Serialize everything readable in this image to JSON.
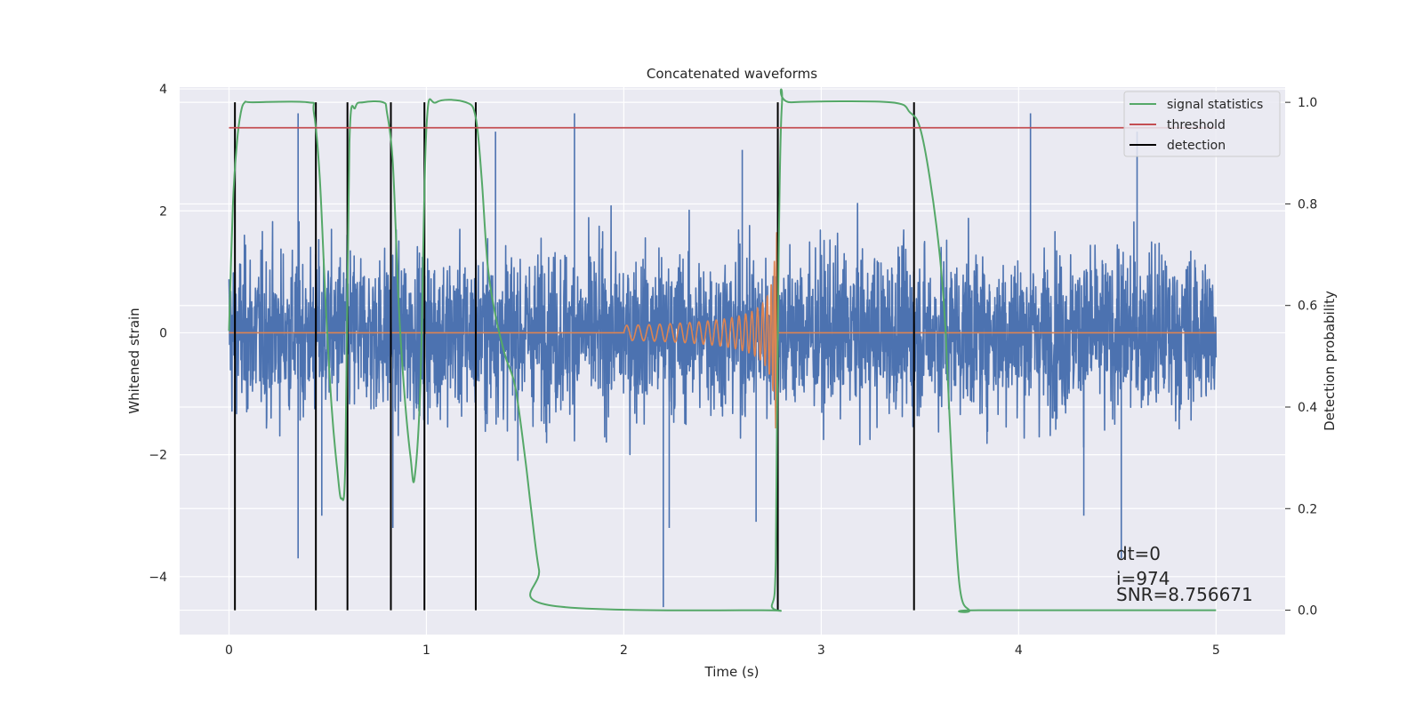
{
  "chart_data": {
    "type": "line",
    "title": "Concatenated waveforms",
    "xlabel": "Time (s)",
    "ylabel": "Whitened strain",
    "y2label": "Detection probability",
    "xlim": [
      -0.25,
      5.35
    ],
    "ylim": [
      -4.95,
      4.03
    ],
    "y2lim": [
      -0.048,
      1.03
    ],
    "xticks": [
      0,
      1,
      2,
      3,
      4,
      5
    ],
    "xtick_labels": [
      "0",
      "1",
      "2",
      "3",
      "4",
      "5"
    ],
    "yticks": [
      -4,
      -2,
      0,
      2,
      4
    ],
    "ytick_labels": [
      "−4",
      "−2",
      "0",
      "2",
      "4"
    ],
    "y2ticks": [
      0.0,
      0.2,
      0.4,
      0.6,
      0.8,
      1.0
    ],
    "y2tick_labels": [
      "0.0",
      "0.2",
      "0.4",
      "0.6",
      "0.8",
      "1.0"
    ],
    "grid": true,
    "legend_position": "top-right",
    "colors": {
      "background": "#eaeaf2",
      "grid": "#ffffff",
      "strain": "#4c72b0",
      "template": "#dd8452",
      "signal_statistics": "#55a868",
      "threshold": "#c44e52",
      "detection": "#000000"
    },
    "strain": {
      "t_start": 0.0,
      "t_end": 5.0,
      "typical_amplitude": 1.2,
      "outliers": [
        {
          "t": 0.35,
          "y": 3.6
        },
        {
          "t": 0.35,
          "y": -3.7
        },
        {
          "t": 0.47,
          "y": -3.0
        },
        {
          "t": 0.83,
          "y": -3.2
        },
        {
          "t": 1.35,
          "y": 3.3
        },
        {
          "t": 1.75,
          "y": 3.6
        },
        {
          "t": 2.2,
          "y": -4.5
        },
        {
          "t": 2.23,
          "y": -3.2
        },
        {
          "t": 2.6,
          "y": 3.0
        },
        {
          "t": 2.67,
          "y": -3.1
        },
        {
          "t": 4.06,
          "y": 3.6
        },
        {
          "t": 4.33,
          "y": -3.0
        },
        {
          "t": 4.52,
          "y": -3.7
        },
        {
          "t": 4.6,
          "y": 3.3
        }
      ]
    },
    "template": {
      "chirp_start": 2.0,
      "merger": 2.78,
      "peak_amplitude": 1.65
    },
    "signal_statistics": {
      "t": [
        0.0,
        0.02,
        0.04,
        0.06,
        0.08,
        0.12,
        0.4,
        0.43,
        0.46,
        0.49,
        0.52,
        0.55,
        0.57,
        0.59,
        0.61,
        0.64,
        0.68,
        0.78,
        0.8,
        0.83,
        0.86,
        0.89,
        0.92,
        0.94,
        0.97,
        1.0,
        1.05,
        1.2,
        1.25,
        1.28,
        1.31,
        1.35,
        1.4,
        1.45,
        1.5,
        1.53,
        1.57,
        1.62,
        2.7,
        2.75,
        2.77,
        2.78,
        2.8,
        2.85,
        3.35,
        3.45,
        3.5,
        3.55,
        3.6,
        3.63,
        3.66,
        3.7,
        3.75,
        3.8,
        5.0
      ],
      "p": [
        0.55,
        0.8,
        0.92,
        0.98,
        1.0,
        1.0,
        1.0,
        0.98,
        0.85,
        0.6,
        0.4,
        0.27,
        0.22,
        0.3,
        0.92,
        0.99,
        1.0,
        1.0,
        0.98,
        0.88,
        0.6,
        0.42,
        0.3,
        0.26,
        0.45,
        0.95,
        1.0,
        1.0,
        0.97,
        0.85,
        0.68,
        0.58,
        0.5,
        0.44,
        0.3,
        0.2,
        0.08,
        0.01,
        0.0,
        0.01,
        0.1,
        0.55,
        0.99,
        1.0,
        1.0,
        0.98,
        0.95,
        0.85,
        0.7,
        0.55,
        0.3,
        0.05,
        0.0,
        0.0,
        0.0
      ]
    },
    "threshold": {
      "value": 0.95,
      "t_start": 0.0,
      "t_end": 5.0
    },
    "detections": [
      0.03,
      0.44,
      0.6,
      0.82,
      0.99,
      1.25,
      2.78,
      3.47
    ],
    "legend": [
      {
        "label": "signal statistics",
        "color": "#55a868"
      },
      {
        "label": "threshold",
        "color": "#c44e52"
      },
      {
        "label": "detection",
        "color": "#000000"
      }
    ],
    "annotations": [
      "dt=0",
      "i=974",
      "SNR=8.756671"
    ]
  }
}
